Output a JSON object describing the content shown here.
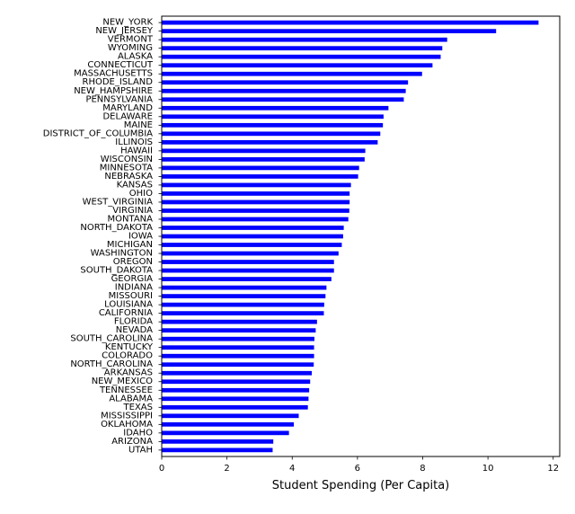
{
  "chart_data": {
    "type": "bar",
    "orientation": "horizontal",
    "categories": [
      "NEW_YORK",
      "NEW_JERSEY",
      "VERMONT",
      "WYOMING",
      "ALASKA",
      "CONNECTICUT",
      "MASSACHUSETTS",
      "RHODE_ISLAND",
      "NEW_HAMPSHIRE",
      "PENNSYLVANIA",
      "MARYLAND",
      "DELAWARE",
      "MAINE",
      "DISTRICT_OF_COLUMBIA",
      "ILLINOIS",
      "HAWAII",
      "WISCONSIN",
      "MINNESOTA",
      "NEBRASKA",
      "KANSAS",
      "OHIO",
      "WEST_VIRGINIA",
      "VIRGINIA",
      "MONTANA",
      "NORTH_DAKOTA",
      "IOWA",
      "MICHIGAN",
      "WASHINGTON",
      "OREGON",
      "SOUTH_DAKOTA",
      "GEORGIA",
      "INDIANA",
      "MISSOURI",
      "LOUISIANA",
      "CALIFORNIA",
      "FLORIDA",
      "NEVADA",
      "SOUTH_CAROLINA",
      "KENTUCKY",
      "COLORADO",
      "NORTH_CAROLINA",
      "ARKANSAS",
      "NEW_MEXICO",
      "TENNESSEE",
      "ALABAMA",
      "TEXAS",
      "MISSISSIPPI",
      "OKLAHOMA",
      "IDAHO",
      "ARIZONA",
      "UTAH"
    ],
    "values": [
      11.55,
      10.25,
      8.75,
      8.6,
      8.55,
      8.3,
      7.98,
      7.55,
      7.48,
      7.42,
      6.95,
      6.8,
      6.78,
      6.7,
      6.62,
      6.24,
      6.22,
      6.05,
      6.02,
      5.8,
      5.76,
      5.76,
      5.75,
      5.72,
      5.58,
      5.56,
      5.52,
      5.42,
      5.28,
      5.28,
      5.2,
      5.05,
      5.02,
      4.98,
      4.97,
      4.76,
      4.72,
      4.68,
      4.67,
      4.67,
      4.66,
      4.6,
      4.55,
      4.52,
      4.5,
      4.48,
      4.2,
      4.05,
      3.9,
      3.42,
      3.4
    ],
    "xlabel": "Student Spending (Per Capita)",
    "ylabel": "",
    "title": "",
    "xlim": [
      0,
      12.2
    ],
    "xticks": [
      0,
      2,
      4,
      6,
      8,
      10,
      12
    ],
    "bar_color": "#0000ff",
    "grid": false,
    "legend": "none"
  }
}
